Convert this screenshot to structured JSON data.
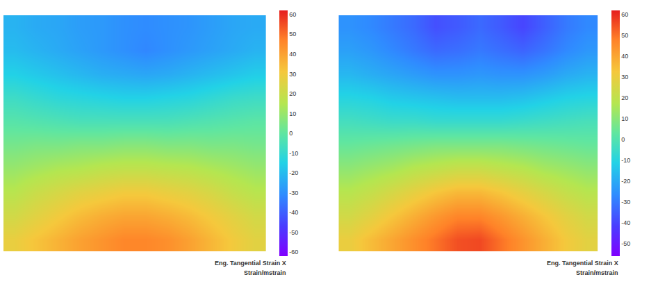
{
  "chart_data": [
    {
      "type": "heatmap",
      "tick_labels": false,
      "annotations": [
        "Eng. Tangential Strain X",
        "Strain/mstrain"
      ],
      "zlim": [
        -62,
        62
      ],
      "zticks": [
        60,
        50,
        40,
        30,
        20,
        10,
        0,
        -10,
        -20,
        -30,
        -40,
        -50,
        -60
      ],
      "z": [
        [
          -22,
          -24,
          -25,
          -27,
          -28,
          -30,
          -31,
          -30,
          -29,
          -27,
          -25,
          -24
        ],
        [
          -20,
          -22,
          -24,
          -26,
          -28,
          -30,
          -32,
          -30,
          -28,
          -26,
          -24,
          -22
        ],
        [
          -15,
          -17,
          -19,
          -21,
          -23,
          -24,
          -25,
          -24,
          -22,
          -20,
          -18,
          -16
        ],
        [
          -8,
          -10,
          -12,
          -13,
          -14,
          -15,
          -15,
          -14,
          -13,
          -11,
          -9,
          -8
        ],
        [
          -2,
          -3,
          -4,
          -5,
          -5,
          -5,
          -5,
          -5,
          -4,
          -3,
          -2,
          -1
        ],
        [
          4,
          5,
          5,
          6,
          6,
          7,
          7,
          6,
          6,
          5,
          5,
          4
        ],
        [
          10,
          12,
          14,
          15,
          17,
          18,
          18,
          17,
          16,
          14,
          12,
          10
        ],
        [
          16,
          20,
          23,
          26,
          28,
          30,
          30,
          28,
          26,
          23,
          19,
          16
        ],
        [
          22,
          26,
          30,
          34,
          37,
          39,
          39,
          37,
          34,
          30,
          26,
          22
        ],
        [
          28,
          32,
          36,
          40,
          43,
          46,
          46,
          44,
          40,
          35,
          30,
          26
        ]
      ]
    },
    {
      "type": "heatmap",
      "tick_labels": false,
      "annotations": [
        "Eng. Tangential Strain X",
        "Strain/mstrain"
      ],
      "zlim": [
        -56,
        62
      ],
      "zticks": [
        60,
        50,
        40,
        30,
        20,
        10,
        0,
        -10,
        -20,
        -30,
        -40,
        -50
      ],
      "z": [
        [
          -25,
          -27,
          -30,
          -33,
          -38,
          -36,
          -33,
          -36,
          -40,
          -35,
          -30,
          -27
        ],
        [
          -22,
          -24,
          -27,
          -30,
          -33,
          -32,
          -30,
          -32,
          -34,
          -31,
          -27,
          -24
        ],
        [
          -17,
          -19,
          -21,
          -23,
          -25,
          -25,
          -24,
          -25,
          -25,
          -23,
          -20,
          -18
        ],
        [
          -10,
          -11,
          -13,
          -14,
          -15,
          -16,
          -16,
          -16,
          -15,
          -13,
          -11,
          -10
        ],
        [
          -3,
          -4,
          -5,
          -5,
          -6,
          -6,
          -6,
          -6,
          -5,
          -4,
          -3,
          -2
        ],
        [
          4,
          5,
          6,
          7,
          8,
          8,
          8,
          8,
          7,
          6,
          5,
          4
        ],
        [
          11,
          13,
          15,
          18,
          20,
          22,
          22,
          20,
          18,
          15,
          13,
          11
        ],
        [
          18,
          21,
          25,
          29,
          33,
          36,
          36,
          33,
          29,
          25,
          21,
          18
        ],
        [
          24,
          28,
          33,
          38,
          43,
          47,
          47,
          43,
          38,
          33,
          28,
          24
        ],
        [
          30,
          35,
          40,
          45,
          50,
          55,
          56,
          50,
          44,
          38,
          32,
          28
        ]
      ]
    }
  ]
}
